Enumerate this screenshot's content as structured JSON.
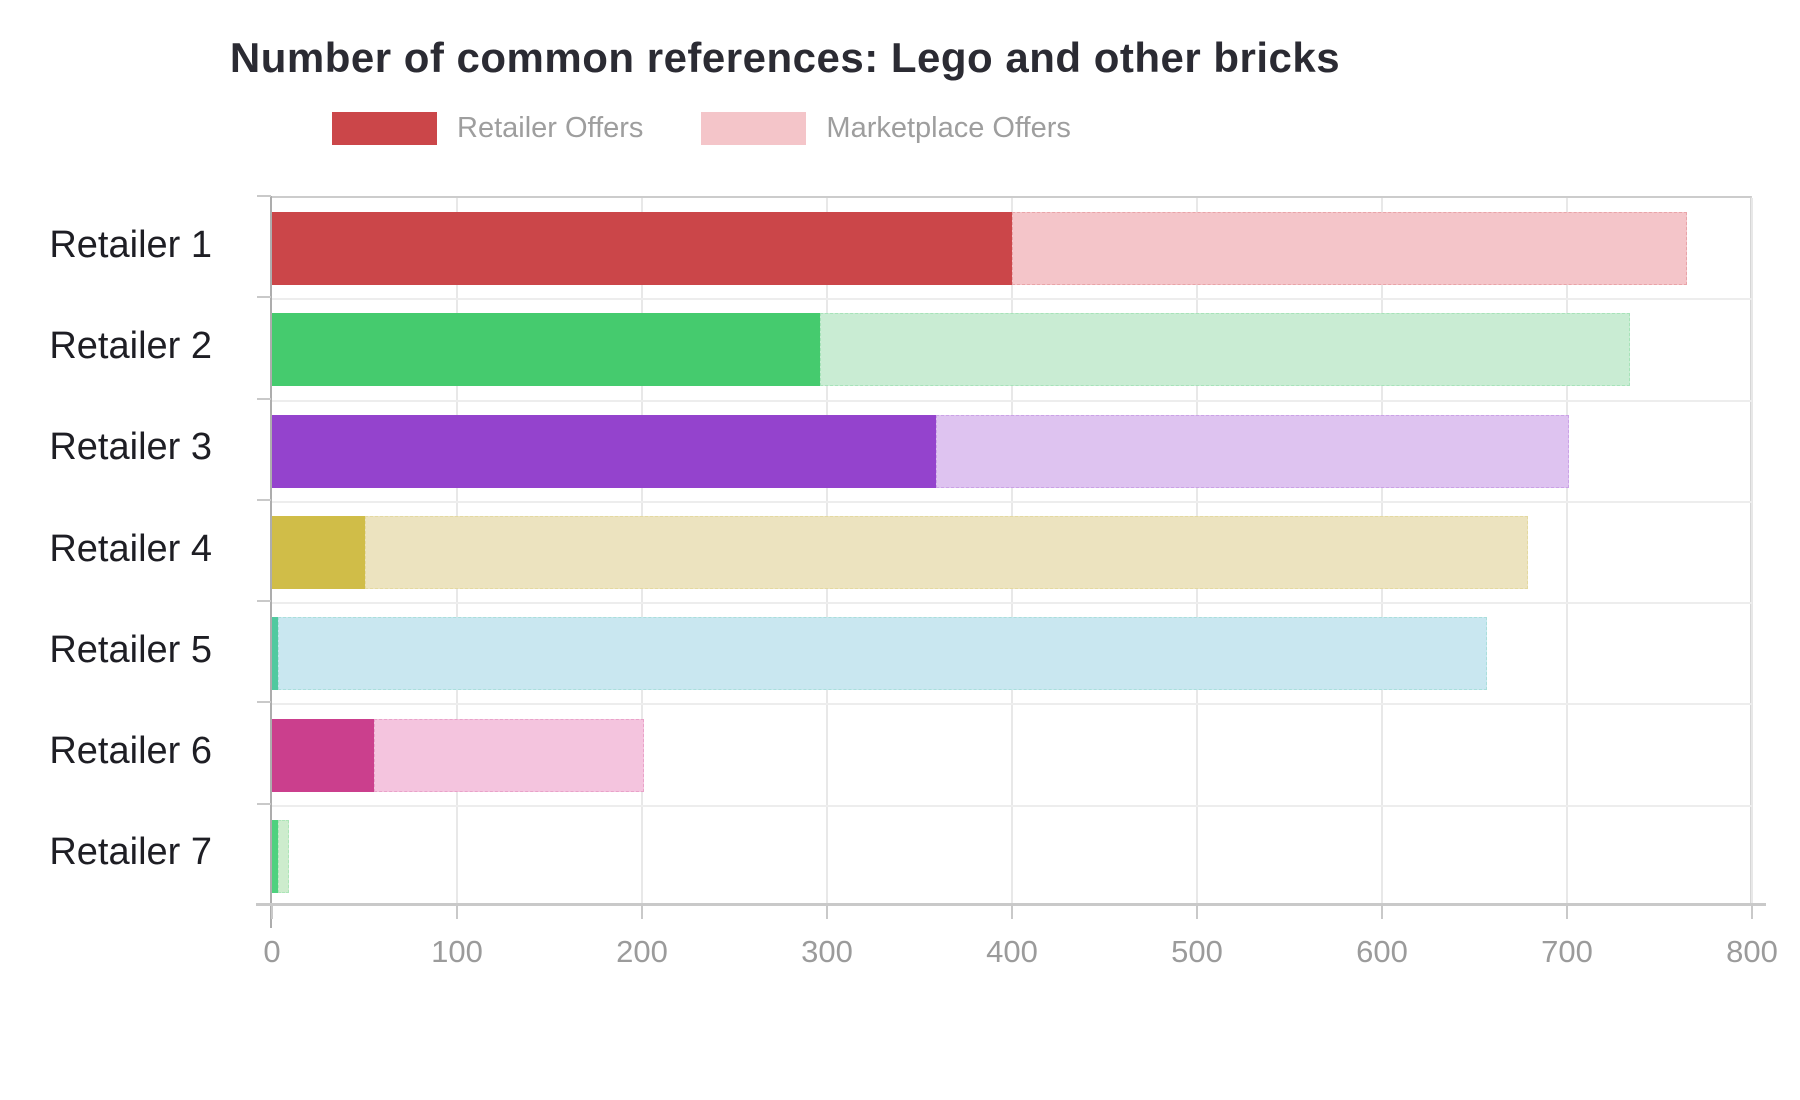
{
  "title": "Number of common references: Lego and other bricks",
  "legend": [
    {
      "label": "Retailer Offers",
      "color": "#cb4649"
    },
    {
      "label": "Marketplace Offers",
      "color": "#f4c5c9"
    }
  ],
  "chart_data": {
    "type": "bar",
    "orientation": "horizontal",
    "stacked": true,
    "title": "Number of common references: Lego and other bricks",
    "categories": [
      "Retailer 1",
      "Retailer 2",
      "Retailer 3",
      "Retailer 4",
      "Retailer 5",
      "Retailer 6",
      "Retailer 7"
    ],
    "series": [
      {
        "name": "Retailer Offers",
        "values": [
          400,
          296,
          359,
          50,
          3,
          55,
          3
        ]
      },
      {
        "name": "Marketplace Offers",
        "values": [
          365,
          438,
          342,
          629,
          654,
          146,
          6
        ]
      }
    ],
    "totals": [
      765,
      734,
      701,
      679,
      657,
      201,
      9
    ],
    "bar_colors": [
      {
        "retailer": "#cb4649",
        "marketplace": "#f4c5c9"
      },
      {
        "retailer": "#45cb6e",
        "marketplace": "#c9ecd3"
      },
      {
        "retailer": "#9443cd",
        "marketplace": "#dec3f0"
      },
      {
        "retailer": "#d0bd48",
        "marketplace": "#ece3bf"
      },
      {
        "retailer": "#50c99f",
        "marketplace": "#c9e7f0"
      },
      {
        "retailer": "#cb3f8d",
        "marketplace": "#f4c4de"
      },
      {
        "retailer": "#4ed17e",
        "marketplace": "#cdeccd"
      }
    ],
    "xlabel": "",
    "ylabel": "",
    "xlim": [
      0,
      800
    ],
    "x_ticks": [
      0,
      100,
      200,
      300,
      400,
      500,
      600,
      700,
      800
    ],
    "grid": true,
    "legend_position": "top"
  }
}
